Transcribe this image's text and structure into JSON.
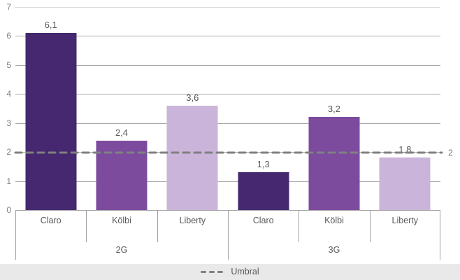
{
  "chart_data": {
    "type": "bar",
    "title": "",
    "xlabel": "",
    "ylabel": "",
    "ylim": [
      0,
      7
    ],
    "grid": true,
    "yticks": [
      "0",
      "1",
      "2",
      "3",
      "4",
      "5",
      "6",
      "7"
    ],
    "groups": [
      "2G",
      "3G"
    ],
    "bars": [
      {
        "group": "2G",
        "operator": "Claro",
        "label": "6,1",
        "value": 6.1,
        "color": "#45286f"
      },
      {
        "group": "2G",
        "operator": "Kölbi",
        "label": "2,4",
        "value": 2.4,
        "color": "#7c4b9e"
      },
      {
        "group": "2G",
        "operator": "Liberty",
        "label": "3,6",
        "value": 3.6,
        "color": "#cbb4da"
      },
      {
        "group": "3G",
        "operator": "Claro",
        "label": "1,3",
        "value": 1.3,
        "color": "#45286f"
      },
      {
        "group": "3G",
        "operator": "Kölbi",
        "label": "3,2",
        "value": 3.2,
        "color": "#7c4b9e"
      },
      {
        "group": "3G",
        "operator": "Liberty",
        "label": "1,8",
        "value": 1.8,
        "color": "#cbb4da"
      }
    ],
    "threshold": {
      "value": 2,
      "label": "2",
      "name": "Umbral",
      "color": "#808080"
    },
    "legend": {
      "label": "Umbral",
      "position": "bottom"
    },
    "colors": {
      "claro": "#45286f",
      "kolbi": "#7c4b9e",
      "liberty": "#cbb4da",
      "gridline": "#a9a9a9",
      "top_gridline": "#d9d9d9",
      "axis": "#a0a0a0",
      "text": "#595959",
      "tick_text": "#7f7f7f",
      "legend_background": "#e9e9e9"
    }
  }
}
